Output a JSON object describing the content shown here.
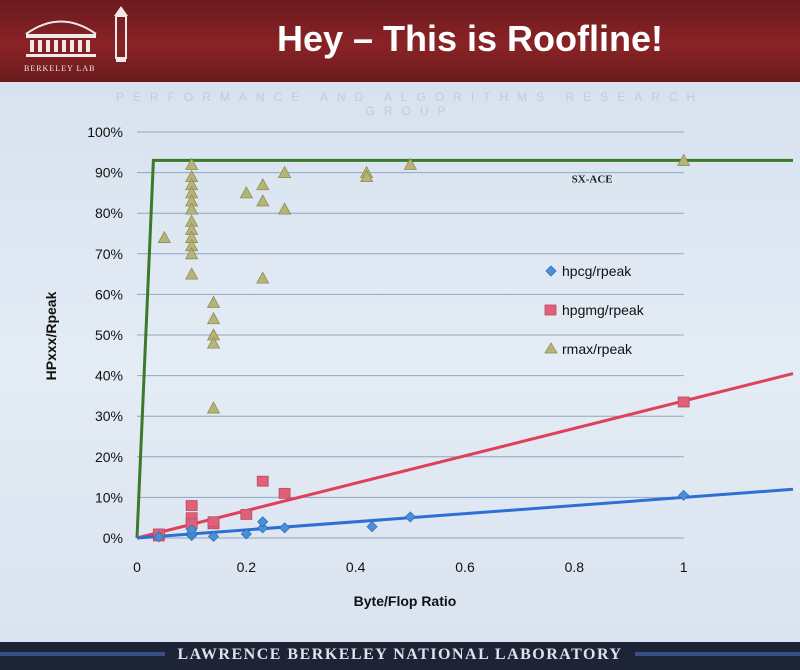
{
  "slide": {
    "title": "Hey – This is Roofline!",
    "subheader": "PERFORMANCE AND ALGORITHMS RESEARCH GROUP",
    "logo_text": "BERKELEY LAB",
    "footer": "LAWRENCE BERKELEY NATIONAL LABORATORY"
  },
  "chart_data": {
    "type": "scatter",
    "xlabel": "Byte/Flop Ratio",
    "ylabel": "HPxxx/Rpeak",
    "xlim": [
      0,
      1.2
    ],
    "ylim": [
      0,
      100
    ],
    "x_ticks": [
      0,
      0.2,
      0.4,
      0.6,
      0.8,
      1
    ],
    "x_tick_labels": [
      "0",
      "0.2",
      "0.4",
      "0.6",
      "0.8",
      "1"
    ],
    "y_ticks": [
      0,
      10,
      20,
      30,
      40,
      50,
      60,
      70,
      80,
      90,
      100
    ],
    "y_tick_labels": [
      "0%",
      "10%",
      "20%",
      "30%",
      "40%",
      "50%",
      "60%",
      "70%",
      "80%",
      "90%",
      "100%"
    ],
    "grid": "horizontal",
    "legend_position": "right",
    "series": [
      {
        "name": "hpcg/rpeak",
        "marker": "diamond",
        "color": "#4a90d9",
        "points": [
          [
            0.04,
            0.3
          ],
          [
            0.1,
            0.6
          ],
          [
            0.1,
            1.2
          ],
          [
            0.1,
            2.0
          ],
          [
            0.14,
            0.4
          ],
          [
            0.2,
            1.0
          ],
          [
            0.23,
            2.5
          ],
          [
            0.23,
            4.0
          ],
          [
            0.27,
            2.5
          ],
          [
            0.43,
            2.8
          ],
          [
            0.5,
            5.2
          ],
          [
            1.0,
            10.5
          ]
        ]
      },
      {
        "name": "hpgmg/rpeak",
        "marker": "square",
        "color": "#e0607a",
        "points": [
          [
            0.04,
            0.5
          ],
          [
            0.04,
            1.0
          ],
          [
            0.1,
            8.0
          ],
          [
            0.1,
            5.0
          ],
          [
            0.1,
            3.5
          ],
          [
            0.14,
            3.5
          ],
          [
            0.14,
            4.0
          ],
          [
            0.2,
            5.8
          ],
          [
            0.23,
            14.0
          ],
          [
            0.27,
            11.0
          ],
          [
            1.0,
            33.5
          ]
        ]
      },
      {
        "name": "rmax/rpeak",
        "marker": "triangle",
        "color": "#b5b57a",
        "points": [
          [
            0.05,
            74
          ],
          [
            0.1,
            92
          ],
          [
            0.1,
            89
          ],
          [
            0.1,
            87
          ],
          [
            0.1,
            85
          ],
          [
            0.1,
            83
          ],
          [
            0.1,
            81
          ],
          [
            0.1,
            78
          ],
          [
            0.1,
            76
          ],
          [
            0.1,
            74
          ],
          [
            0.1,
            72
          ],
          [
            0.1,
            70
          ],
          [
            0.1,
            65
          ],
          [
            0.14,
            58
          ],
          [
            0.14,
            54
          ],
          [
            0.14,
            50
          ],
          [
            0.14,
            48
          ],
          [
            0.14,
            32
          ],
          [
            0.2,
            85
          ],
          [
            0.23,
            87
          ],
          [
            0.23,
            83
          ],
          [
            0.23,
            64
          ],
          [
            0.27,
            90
          ],
          [
            0.27,
            81
          ],
          [
            0.42,
            90
          ],
          [
            0.42,
            89
          ],
          [
            0.5,
            92
          ],
          [
            1.0,
            93
          ]
        ]
      }
    ],
    "lines": [
      {
        "name": "roof",
        "color": "#3a7a2a",
        "points": [
          [
            0,
            0
          ],
          [
            0.03,
            93
          ],
          [
            1.2,
            93
          ]
        ]
      },
      {
        "name": "hpgmg-trend",
        "color": "#e0405a",
        "points": [
          [
            0,
            0
          ],
          [
            1.2,
            40.5
          ]
        ]
      },
      {
        "name": "hpcg-trend",
        "color": "#2e6fd6",
        "points": [
          [
            0,
            0
          ],
          [
            1.2,
            12
          ]
        ]
      }
    ],
    "annotations": [
      {
        "text": "SX-ACE",
        "x": 0.85,
        "y": 92
      }
    ]
  }
}
